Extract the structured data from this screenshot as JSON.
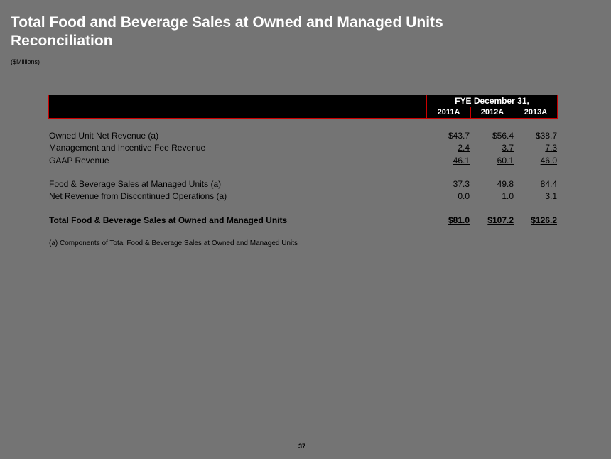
{
  "title": "Total Food and Beverage Sales at Owned and Managed Units Reconciliation",
  "subtitle": "($Millions)",
  "header": {
    "period_label": "FYE December 31,",
    "years": [
      "2011A",
      "2012A",
      "2013A"
    ]
  },
  "rows": [
    {
      "label": "Owned Unit Net Revenue (a)",
      "values": [
        "$43.7",
        "$56.4",
        "$38.7"
      ]
    },
    {
      "label": "Management and Incentive Fee Revenue",
      "values": [
        "2.4",
        "3.7",
        "7.3"
      ]
    },
    {
      "label": "GAAP Revenue",
      "values": [
        "46.1",
        "60.1",
        "46.0"
      ]
    },
    {
      "label": "Food & Beverage Sales at Managed Units (a)",
      "values": [
        "37.3",
        "49.8",
        "84.4"
      ]
    },
    {
      "label": "Net Revenue from Discontinued Operations (a)",
      "values": [
        "0.0",
        "1.0",
        "3.1"
      ]
    },
    {
      "label": "Total Food & Beverage Sales at Owned and Managed Units",
      "values": [
        "$81.0",
        "$107.2",
        "$126.2"
      ]
    }
  ],
  "footnote": "(a) Components of Total Food & Beverage Sales at Owned and Managed Units",
  "page_number": "37",
  "colors": {
    "background": "#747474",
    "header_fill": "#000000",
    "header_border": "#cc0000",
    "title_text": "#ffffff"
  }
}
